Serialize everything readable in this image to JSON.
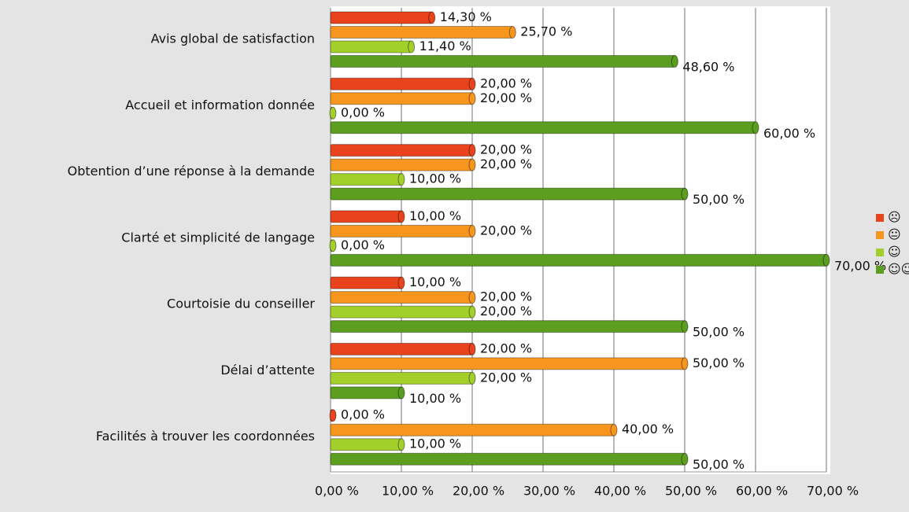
{
  "chart_data": {
    "type": "bar",
    "orientation": "horizontal",
    "categories": [
      "Avis global de satisfaction",
      "Accueil et information donnée",
      "Obtention d’une réponse à la demande",
      "Clarté et simplicité de langage",
      "Courtoisie du conseiller",
      "Délai d’attente",
      "Facilités à trouver les coordonnées"
    ],
    "series": [
      {
        "name": "☹",
        "color": "#e8431c",
        "values": [
          14.3,
          20,
          20,
          10,
          10,
          20,
          0
        ],
        "value_labels": [
          "14,30 %",
          "20,00 %",
          "20,00 %",
          "10,00 %",
          "10,00 %",
          "20,00 %",
          "0,00 %"
        ]
      },
      {
        "name": "😐",
        "color": "#f7961e",
        "values": [
          25.7,
          20,
          20,
          20,
          20,
          50,
          40
        ],
        "value_labels": [
          "25,70 %",
          "20,00 %",
          "20,00 %",
          "20,00 %",
          "20,00 %",
          "50,00 %",
          "40,00 %"
        ]
      },
      {
        "name": "☺",
        "color": "#a3cf2a",
        "values": [
          11.4,
          0,
          10,
          0,
          20,
          20,
          10
        ],
        "value_labels": [
          "11,40 %",
          "0,00 %",
          "10,00 %",
          "0,00 %",
          "20,00 %",
          "20,00 %",
          "10,00 %"
        ]
      },
      {
        "name": "☺☺",
        "color": "#5c9e1f",
        "values": [
          48.6,
          60,
          50,
          70,
          50,
          10,
          50
        ],
        "value_labels": [
          "48,60 %",
          "60,00 %",
          "50,00 %",
          "70,00 %",
          "50,00 %",
          "10,00 %",
          "50,00 %"
        ]
      }
    ],
    "xlim": [
      0,
      70
    ],
    "xticks": [
      {
        "value": 0,
        "label": "0,00 %"
      },
      {
        "value": 10,
        "label": "10,00 %"
      },
      {
        "value": 20,
        "label": "20,00 %"
      },
      {
        "value": 30,
        "label": "30,00 %"
      },
      {
        "value": 40,
        "label": "40,00 %"
      },
      {
        "value": 50,
        "label": "50,00 %"
      },
      {
        "value": 60,
        "label": "60,00 %"
      },
      {
        "value": 70,
        "label": "70,00 %"
      }
    ],
    "grid": true,
    "legend": "right"
  }
}
